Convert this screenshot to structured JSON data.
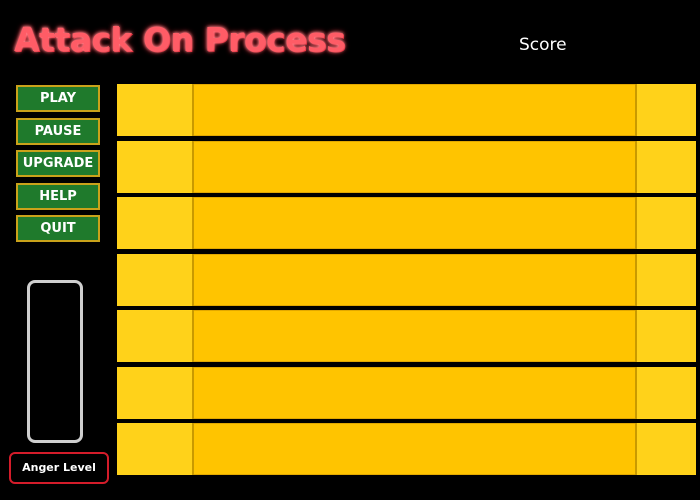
{
  "game": {
    "title": "Attack On Process",
    "score_label": "Score"
  },
  "menu": {
    "play": "PLAY",
    "pause": "PAUSE",
    "upgrade": "UPGRADE",
    "help": "HELP",
    "quit": "QUIT"
  },
  "anger": {
    "label": "Anger Level",
    "level": 0
  },
  "lanes": {
    "count": 7
  },
  "colors": {
    "background": "#000000",
    "title": "#ff5c66",
    "button_fill": "#1f7a2c",
    "button_border": "#c9a21a",
    "lane_fill": "#ffc400",
    "lane_end_fill": "#ffd21a",
    "anger_border": "#d41c2a",
    "meter_border": "#cfcfcf"
  }
}
